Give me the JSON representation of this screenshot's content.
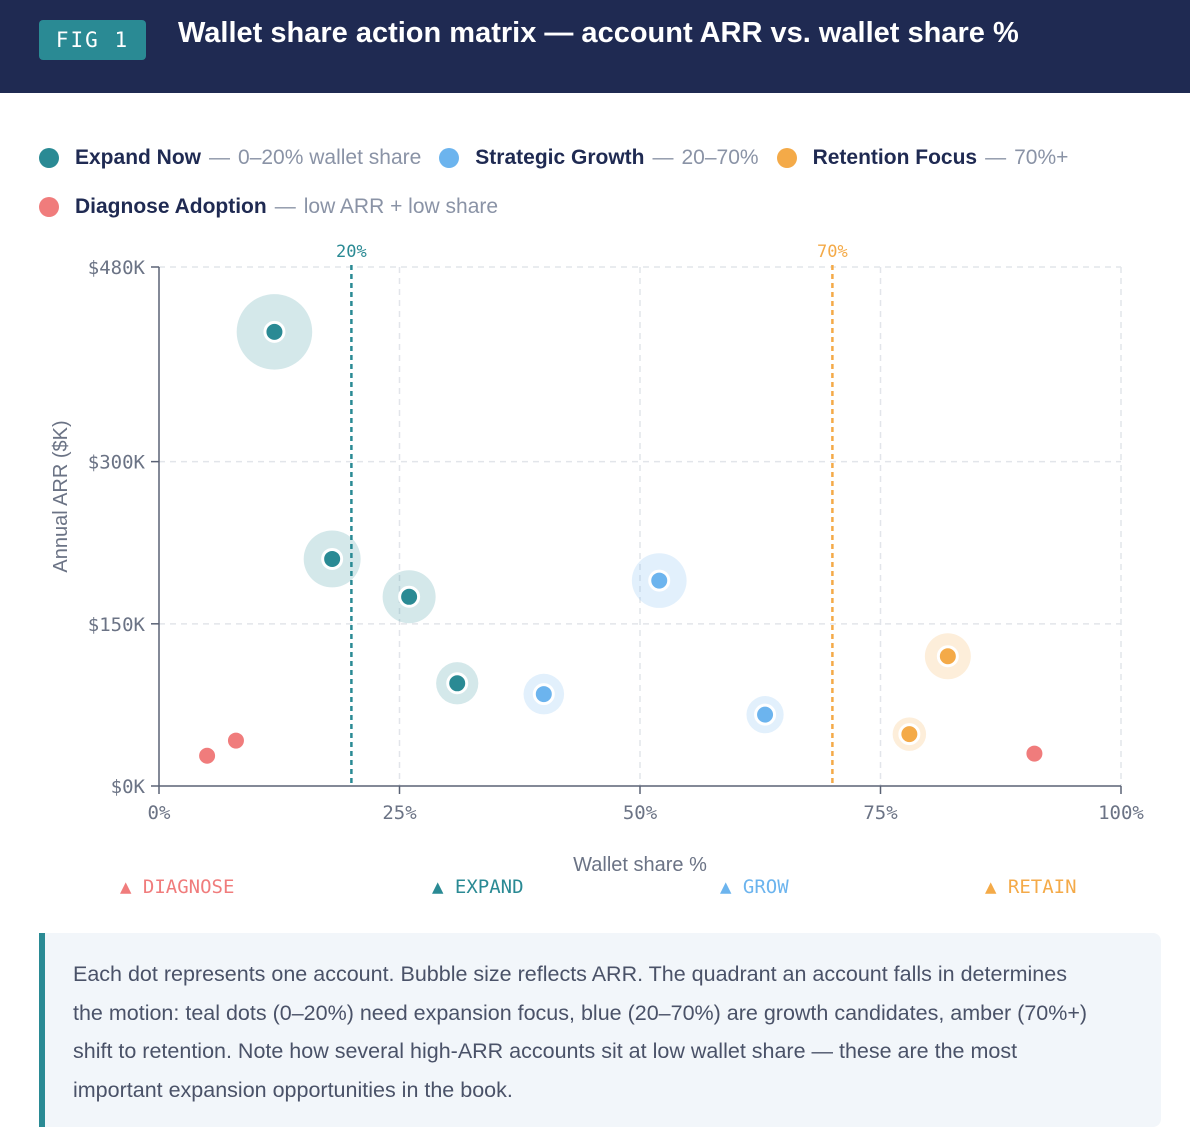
{
  "header": {
    "badge": "FIG 1",
    "title": "Wallet share action matrix — account ARR vs. wallet share %"
  },
  "legend": [
    {
      "name": "Expand Now",
      "separator": "—",
      "desc": "0–20% wallet share",
      "color": "#2a8a94"
    },
    {
      "name": "Strategic Growth",
      "separator": "—",
      "desc": "20–70%",
      "color": "#6cb4ee"
    },
    {
      "name": "Retention Focus",
      "separator": "—",
      "desc": "70%+",
      "color": "#f4aa48"
    },
    {
      "name": "Diagnose Adoption",
      "separator": "—",
      "desc": "low ARR + low share",
      "color": "#f07c7c"
    }
  ],
  "chart_data": {
    "type": "scatter",
    "xlabel": "Wallet share %",
    "ylabel": "Annual ARR ($K)",
    "xlim": [
      0,
      100
    ],
    "ylim": [
      0,
      480
    ],
    "x_ticks": [
      0,
      25,
      50,
      75,
      100
    ],
    "x_tick_labels": [
      "0%",
      "25%",
      "50%",
      "75%",
      "100%"
    ],
    "y_ticks": [
      0,
      150,
      300,
      480
    ],
    "y_tick_labels": [
      "$0K",
      "$150K",
      "$300K",
      "$480K"
    ],
    "grid": true,
    "thresholds": [
      {
        "x": 20,
        "label": "20%",
        "color": "#2a8a94"
      },
      {
        "x": 70,
        "label": "70%",
        "color": "#f4aa48"
      }
    ],
    "series": [
      {
        "name": "Expand Now",
        "color": "#2a8a94",
        "points": [
          {
            "x": 12,
            "y": 420
          },
          {
            "x": 18,
            "y": 210
          },
          {
            "x": 26,
            "y": 175
          },
          {
            "x": 31,
            "y": 95
          }
        ]
      },
      {
        "name": "Strategic Growth",
        "color": "#6cb4ee",
        "points": [
          {
            "x": 52,
            "y": 190
          },
          {
            "x": 40,
            "y": 85
          },
          {
            "x": 63,
            "y": 66
          }
        ]
      },
      {
        "name": "Retention Focus",
        "color": "#f4aa48",
        "points": [
          {
            "x": 82,
            "y": 120
          },
          {
            "x": 78,
            "y": 48
          }
        ]
      },
      {
        "name": "Diagnose Adoption",
        "color": "#f07c7c",
        "points": [
          {
            "x": 5,
            "y": 28
          },
          {
            "x": 8,
            "y": 42
          },
          {
            "x": 91,
            "y": 30
          }
        ]
      }
    ],
    "zones": [
      {
        "label": "▲ DIAGNOSE",
        "color": "#f07c7c"
      },
      {
        "label": "▲ EXPAND",
        "color": "#2a8a94"
      },
      {
        "label": "▲ GROW",
        "color": "#6cb4ee"
      },
      {
        "label": "▲ RETAIN",
        "color": "#f4aa48"
      }
    ]
  },
  "note": "Each dot represents one account. Bubble size reflects ARR. The quadrant an account falls in determines the motion: teal dots (0–20%) need expansion focus, blue (20–70%) are growth candidates, amber (70%+) shift to retention. Note how several high-ARR accounts sit at low wallet share — these are the most important expansion opportunities in the book."
}
